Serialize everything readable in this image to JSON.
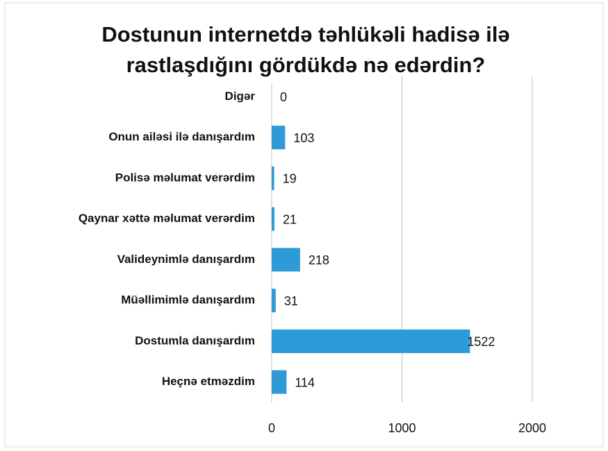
{
  "chart_data": {
    "type": "bar",
    "orientation": "horizontal",
    "title": "Dostunun internetdə təhlükəli hadisə ilə rastlaşdığını gördükdə nə edərdin?",
    "categories": [
      "Digər",
      "Onun ailəsi ilə danışardım",
      "Polisə məlumat verərdim",
      "Qaynar xəttə məlumat verərdim",
      "Valideynimlə danışardım",
      "Müəllimimlə danışardım",
      "Dostumla danışardım",
      "Heçnə etməzdim"
    ],
    "values": [
      0,
      103,
      19,
      21,
      218,
      31,
      1522,
      114
    ],
    "color": "#2e9ad8",
    "xlim": [
      0,
      2000
    ],
    "xticks": [
      0,
      1000,
      2000
    ],
    "grid": true
  }
}
